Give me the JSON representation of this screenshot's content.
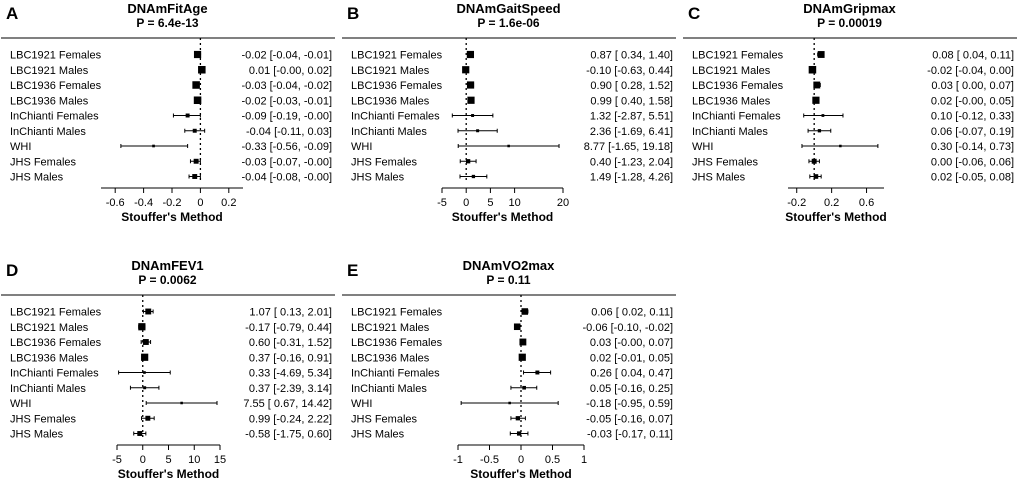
{
  "figure": {
    "x_axis_label": "Stouffer's Method",
    "row_labels": [
      "LBC1921 Females",
      "LBC1921 Males",
      "LBC1936 Females",
      "LBC1936 Males",
      "InChianti Females",
      "InChianti Males",
      "WHI",
      "JHS Females",
      "JHS Males"
    ]
  },
  "chart_data": [
    {
      "type": "forest",
      "panel": "A",
      "title": "DNAmFitAge",
      "subtitle": "P = 6.4e-13",
      "xlabel": "Stouffer's Method",
      "xlim": [
        -0.7,
        0.3
      ],
      "xticks": [
        -0.6,
        -0.4,
        -0.2,
        0,
        0.2
      ],
      "tick_labels": [
        "-0.6",
        "-0.4",
        "-0.2",
        "0",
        "0.2"
      ],
      "reference_line": 0,
      "rows": [
        {
          "label": "LBC1921 Females",
          "est": -0.02,
          "lo": -0.04,
          "hi": -0.01,
          "weight": 0.8,
          "text": "-0.02 [-0.04, -0.01]"
        },
        {
          "label": "LBC1921 Males",
          "est": 0.01,
          "lo": -0.0,
          "hi": 0.02,
          "weight": 0.85,
          "text": "0.01 [-0.00,  0.02]"
        },
        {
          "label": "LBC1936 Females",
          "est": -0.03,
          "lo": -0.04,
          "hi": -0.02,
          "weight": 0.85,
          "text": "-0.03 [-0.04, -0.02]"
        },
        {
          "label": "LBC1936 Males",
          "est": -0.02,
          "lo": -0.03,
          "hi": -0.01,
          "weight": 0.85,
          "text": "-0.02 [-0.03, -0.01]"
        },
        {
          "label": "InChianti Females",
          "est": -0.09,
          "lo": -0.19,
          "hi": -0.0,
          "weight": 0.3,
          "text": "-0.09 [-0.19, -0.00]"
        },
        {
          "label": "InChianti Males",
          "est": -0.04,
          "lo": -0.11,
          "hi": 0.03,
          "weight": 0.3,
          "text": "-0.04 [-0.11,  0.03]"
        },
        {
          "label": "WHI",
          "est": -0.33,
          "lo": -0.56,
          "hi": -0.09,
          "weight": 0.1,
          "text": "-0.33 [-0.56, -0.09]"
        },
        {
          "label": "JHS Females",
          "est": -0.03,
          "lo": -0.07,
          "hi": -0.0,
          "weight": 0.45,
          "text": "-0.03 [-0.07, -0.00]"
        },
        {
          "label": "JHS Males",
          "est": -0.04,
          "lo": -0.08,
          "hi": -0.0,
          "weight": 0.45,
          "text": "-0.04 [-0.08, -0.00]"
        }
      ]
    },
    {
      "type": "forest",
      "panel": "B",
      "title": "DNAmGaitSpeed",
      "subtitle": "P = 1.6e-06",
      "xlabel": "Stouffer's Method",
      "xlim": [
        -5,
        20
      ],
      "xticks": [
        -5,
        0,
        5,
        10,
        20
      ],
      "tick_labels": [
        "-5",
        "0",
        "5",
        "10",
        "20"
      ],
      "reference_line": 0,
      "rows": [
        {
          "label": "LBC1921 Females",
          "est": 0.87,
          "lo": 0.34,
          "hi": 1.4,
          "weight": 0.8,
          "text": "0.87 [ 0.34,  1.40]"
        },
        {
          "label": "LBC1921 Males",
          "est": -0.1,
          "lo": -0.63,
          "hi": 0.44,
          "weight": 0.8,
          "text": "-0.10 [-0.63,  0.44]"
        },
        {
          "label": "LBC1936 Females",
          "est": 0.9,
          "lo": 0.28,
          "hi": 1.52,
          "weight": 0.8,
          "text": "0.90 [ 0.28,  1.52]"
        },
        {
          "label": "LBC1936 Males",
          "est": 0.99,
          "lo": 0.4,
          "hi": 1.58,
          "weight": 0.8,
          "text": "0.99 [ 0.40,  1.58]"
        },
        {
          "label": "InChianti Females",
          "est": 1.32,
          "lo": -2.87,
          "hi": 5.51,
          "weight": 0.15,
          "text": "1.32 [-2.87,  5.51]"
        },
        {
          "label": "InChianti Males",
          "est": 2.36,
          "lo": -1.69,
          "hi": 6.41,
          "weight": 0.15,
          "text": "2.36 [-1.69,  6.41]"
        },
        {
          "label": "WHI",
          "est": 8.77,
          "lo": -1.65,
          "hi": 19.18,
          "weight": 0.08,
          "text": "8.77 [-1.65, 19.18]"
        },
        {
          "label": "JHS Females",
          "est": 0.4,
          "lo": -1.23,
          "hi": 2.04,
          "weight": 0.35,
          "text": "0.40 [-1.23,  2.04]"
        },
        {
          "label": "JHS Males",
          "est": 1.49,
          "lo": -1.28,
          "hi": 4.26,
          "weight": 0.2,
          "text": "1.49 [-1.28,  4.26]"
        }
      ]
    },
    {
      "type": "forest",
      "panel": "C",
      "title": "DNAmGripmax",
      "subtitle": "P = 0.00019",
      "xlabel": "Stouffer's Method",
      "xlim": [
        -0.3,
        0.8
      ],
      "xticks": [
        -0.2,
        0.2,
        0.6
      ],
      "tick_labels": [
        "-0.2",
        "0.2",
        "0.6"
      ],
      "reference_line": 0,
      "rows": [
        {
          "label": "LBC1921 Females",
          "est": 0.08,
          "lo": 0.04,
          "hi": 0.11,
          "weight": 0.75,
          "text": "0.08 [ 0.04,  0.11]"
        },
        {
          "label": "LBC1921 Males",
          "est": -0.02,
          "lo": -0.04,
          "hi": 0.0,
          "weight": 0.85,
          "text": "-0.02 [-0.04,  0.00]"
        },
        {
          "label": "LBC1936 Females",
          "est": 0.03,
          "lo": 0.0,
          "hi": 0.07,
          "weight": 0.75,
          "text": "0.03 [ 0.00,  0.07]"
        },
        {
          "label": "LBC1936 Males",
          "est": 0.02,
          "lo": -0.0,
          "hi": 0.05,
          "weight": 0.8,
          "text": "0.02 [-0.00,  0.05]"
        },
        {
          "label": "InChianti Females",
          "est": 0.1,
          "lo": -0.12,
          "hi": 0.33,
          "weight": 0.12,
          "text": "0.10 [-0.12,  0.33]"
        },
        {
          "label": "InChianti Males",
          "est": 0.06,
          "lo": -0.07,
          "hi": 0.19,
          "weight": 0.2,
          "text": "0.06 [-0.07,  0.19]"
        },
        {
          "label": "WHI",
          "est": 0.3,
          "lo": -0.14,
          "hi": 0.73,
          "weight": 0.08,
          "text": "0.30 [-0.14,  0.73]"
        },
        {
          "label": "JHS Females",
          "est": 0.0,
          "lo": -0.06,
          "hi": 0.06,
          "weight": 0.45,
          "text": "0.00 [-0.06,  0.06]"
        },
        {
          "label": "JHS Males",
          "est": 0.02,
          "lo": -0.05,
          "hi": 0.08,
          "weight": 0.4,
          "text": "0.02 [-0.05,  0.08]"
        }
      ]
    },
    {
      "type": "forest",
      "panel": "D",
      "title": "DNAmFEV1",
      "subtitle": "P = 0.0062",
      "xlabel": "Stouffer's Method",
      "xlim": [
        -5,
        15
      ],
      "xticks": [
        -5,
        0,
        5,
        10,
        15
      ],
      "tick_labels": [
        "-5",
        "0",
        "5",
        "10",
        "15"
      ],
      "reference_line": 0,
      "rows": [
        {
          "label": "LBC1921 Females",
          "est": 1.07,
          "lo": 0.13,
          "hi": 2.01,
          "weight": 0.6,
          "text": "1.07 [ 0.13,  2.01]"
        },
        {
          "label": "LBC1921 Males",
          "est": -0.17,
          "lo": -0.79,
          "hi": 0.44,
          "weight": 0.8,
          "text": "-0.17 [-0.79,  0.44]"
        },
        {
          "label": "LBC1936 Females",
          "est": 0.6,
          "lo": -0.31,
          "hi": 1.52,
          "weight": 0.6,
          "text": "0.60 [-0.31,  1.52]"
        },
        {
          "label": "LBC1936 Males",
          "est": 0.37,
          "lo": -0.16,
          "hi": 0.91,
          "weight": 0.8,
          "text": "0.37 [-0.16,  0.91]"
        },
        {
          "label": "InChianti Females",
          "est": 0.33,
          "lo": -4.69,
          "hi": 5.34,
          "weight": 0.1,
          "text": "0.33 [-4.69,  5.34]"
        },
        {
          "label": "InChianti Males",
          "est": 0.37,
          "lo": -2.39,
          "hi": 3.14,
          "weight": 0.15,
          "text": "0.37 [-2.39,  3.14]"
        },
        {
          "label": "WHI",
          "est": 7.55,
          "lo": 0.67,
          "hi": 14.42,
          "weight": 0.08,
          "text": "7.55 [ 0.67, 14.42]"
        },
        {
          "label": "JHS Females",
          "est": 0.99,
          "lo": -0.24,
          "hi": 2.22,
          "weight": 0.45,
          "text": "0.99 [-0.24,  2.22]"
        },
        {
          "label": "JHS Males",
          "est": -0.58,
          "lo": -1.75,
          "hi": 0.6,
          "weight": 0.45,
          "text": "-0.58 [-1.75,  0.60]"
        }
      ]
    },
    {
      "type": "forest",
      "panel": "E",
      "title": "DNAmVO2max",
      "subtitle": "P = 0.11",
      "xlabel": "Stouffer's Method",
      "xlim": [
        -1,
        1
      ],
      "xticks": [
        -1,
        -0.5,
        0,
        0.5,
        1
      ],
      "tick_labels": [
        "-1",
        "-0.5",
        "0",
        "0.5",
        "1"
      ],
      "reference_line": 0,
      "rows": [
        {
          "label": "LBC1921 Females",
          "est": 0.06,
          "lo": 0.02,
          "hi": 0.11,
          "weight": 0.7,
          "text": "0.06 [ 0.02,  0.11]"
        },
        {
          "label": "LBC1921 Males",
          "est": -0.06,
          "lo": -0.1,
          "hi": -0.02,
          "weight": 0.7,
          "text": "-0.06 [-0.10, -0.02]"
        },
        {
          "label": "LBC1936 Females",
          "est": 0.03,
          "lo": -0.0,
          "hi": 0.07,
          "weight": 0.75,
          "text": "0.03 [-0.00,  0.07]"
        },
        {
          "label": "LBC1936 Males",
          "est": 0.02,
          "lo": -0.01,
          "hi": 0.05,
          "weight": 0.8,
          "text": "0.02 [-0.01,  0.05]"
        },
        {
          "label": "InChianti Females",
          "est": 0.26,
          "lo": 0.04,
          "hi": 0.47,
          "weight": 0.3,
          "text": "0.26 [ 0.04,  0.47]"
        },
        {
          "label": "InChianti Males",
          "est": 0.05,
          "lo": -0.16,
          "hi": 0.25,
          "weight": 0.25,
          "text": "0.05 [-0.16,  0.25]"
        },
        {
          "label": "WHI",
          "est": -0.18,
          "lo": -0.95,
          "hi": 0.59,
          "weight": 0.08,
          "text": "-0.18 [-0.95,  0.59]"
        },
        {
          "label": "JHS Females",
          "est": -0.05,
          "lo": -0.16,
          "hi": 0.07,
          "weight": 0.35,
          "text": "-0.05 [-0.16,  0.07]"
        },
        {
          "label": "JHS Males",
          "est": -0.03,
          "lo": -0.17,
          "hi": 0.11,
          "weight": 0.35,
          "text": "-0.03 [-0.17,  0.11]"
        }
      ]
    }
  ]
}
